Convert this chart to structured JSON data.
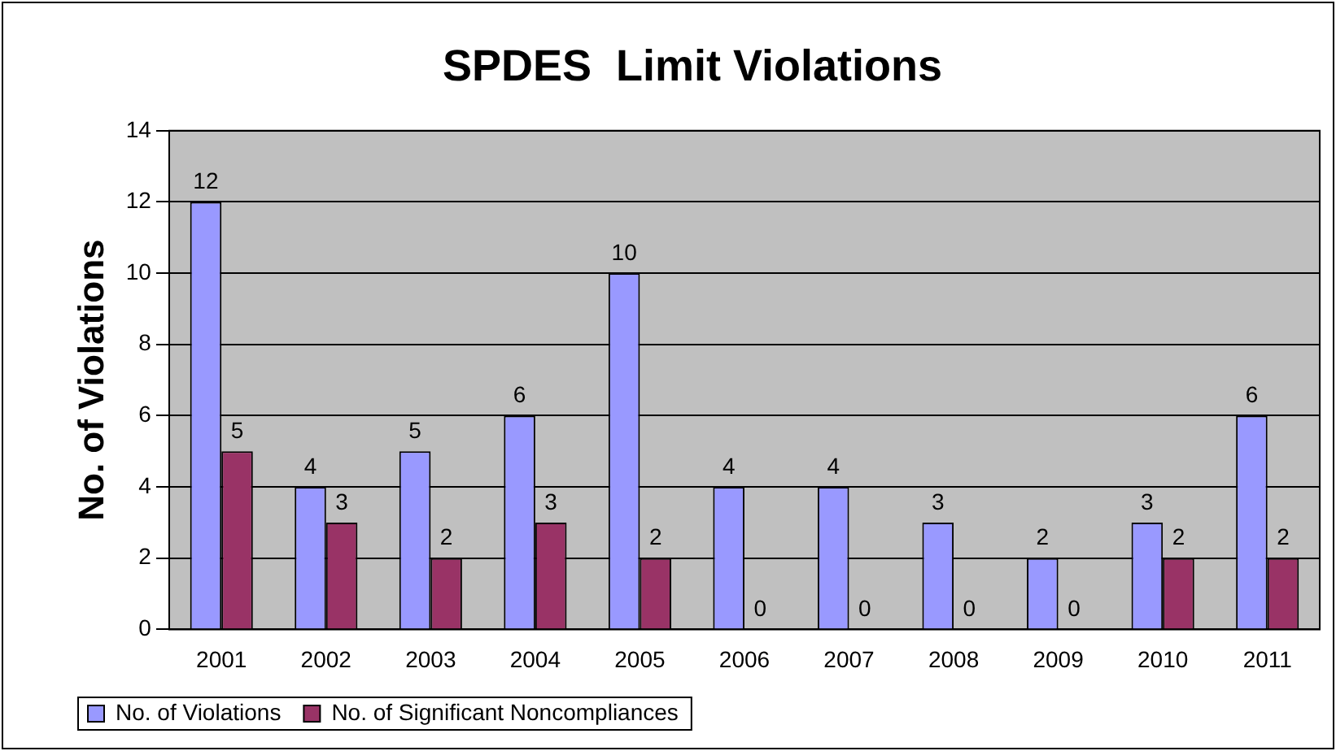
{
  "chart_data": {
    "type": "bar",
    "title": "SPDES  Limit Violations",
    "ylabel": "No. of Violations",
    "categories": [
      "2001",
      "2002",
      "2003",
      "2004",
      "2005",
      "2006",
      "2007",
      "2008",
      "2009",
      "2010",
      "2011"
    ],
    "series": [
      {
        "name": "No. of Violations",
        "color": "#9999ff",
        "values": [
          12,
          4,
          5,
          6,
          10,
          4,
          4,
          3,
          2,
          3,
          6
        ]
      },
      {
        "name": "No. of Significant Noncompliances",
        "color": "#993366",
        "values": [
          5,
          3,
          2,
          3,
          2,
          0,
          0,
          0,
          0,
          2,
          2
        ]
      }
    ],
    "ylim": [
      0,
      14
    ],
    "yticks": [
      0,
      2,
      4,
      6,
      8,
      10,
      12,
      14
    ],
    "grid": "y",
    "legend": "bottom left",
    "data_labels": true
  }
}
